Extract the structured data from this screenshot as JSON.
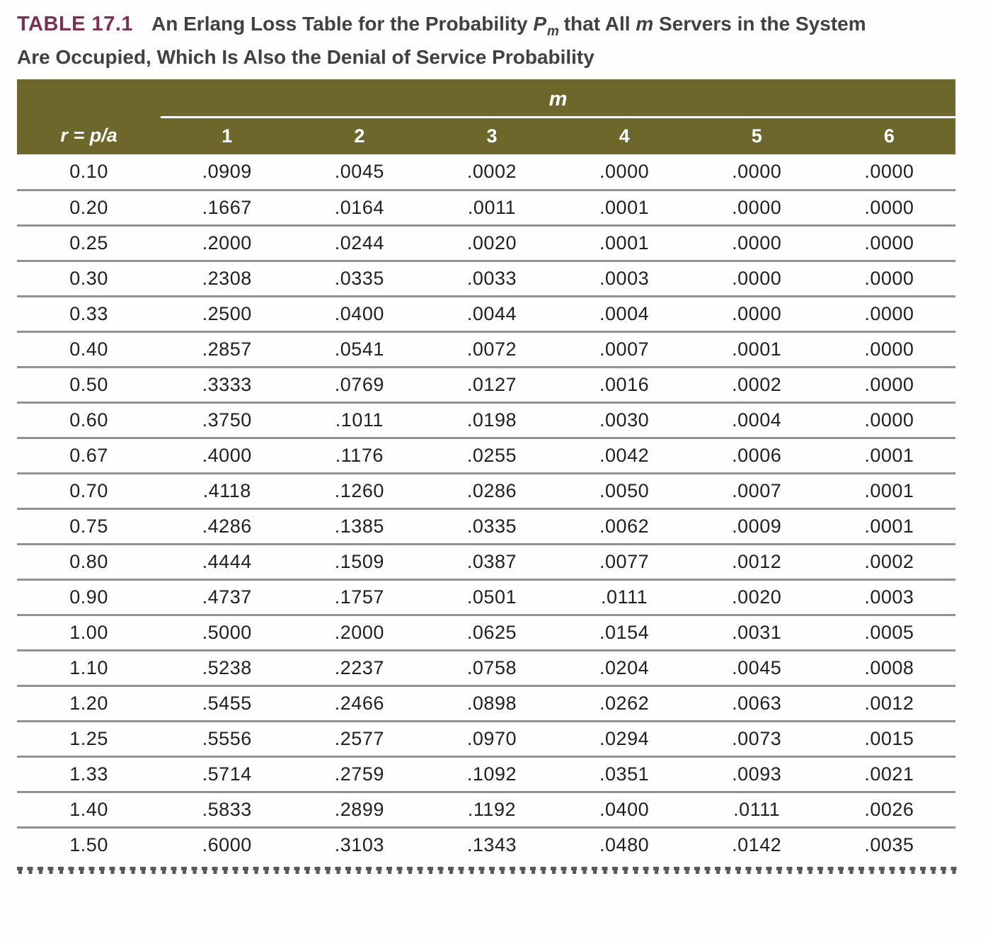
{
  "colors": {
    "header_background": "#6D672B",
    "table_tag": "#7D3054",
    "caption_text": "#414042",
    "data_text": "#231F20",
    "row_divider": "#8F9193",
    "header_text": "#FFFFFF",
    "perforation": "#58595B"
  },
  "caption": {
    "tag": "TABLE 17.1",
    "line1_pre": "An Erlang Loss Table for the Probability ",
    "p_symbol": "P",
    "p_subscript": "m",
    "line1_mid": " that All ",
    "m_italic": "m",
    "line1_post": " Servers in the System",
    "line2": "Are Occupied, Which Is Also the Denial of Service Probability"
  },
  "table": {
    "group_header": "m",
    "row_header_label": "r = p/a",
    "column_headers": [
      "1",
      "2",
      "3",
      "4",
      "5",
      "6"
    ],
    "rows": [
      {
        "r": "0.10",
        "values": [
          ".0909",
          ".0045",
          ".0002",
          ".0000",
          ".0000",
          ".0000"
        ]
      },
      {
        "r": "0.20",
        "values": [
          ".1667",
          ".0164",
          ".0011",
          ".0001",
          ".0000",
          ".0000"
        ]
      },
      {
        "r": "0.25",
        "values": [
          ".2000",
          ".0244",
          ".0020",
          ".0001",
          ".0000",
          ".0000"
        ]
      },
      {
        "r": "0.30",
        "values": [
          ".2308",
          ".0335",
          ".0033",
          ".0003",
          ".0000",
          ".0000"
        ]
      },
      {
        "r": "0.33",
        "values": [
          ".2500",
          ".0400",
          ".0044",
          ".0004",
          ".0000",
          ".0000"
        ]
      },
      {
        "r": "0.40",
        "values": [
          ".2857",
          ".0541",
          ".0072",
          ".0007",
          ".0001",
          ".0000"
        ]
      },
      {
        "r": "0.50",
        "values": [
          ".3333",
          ".0769",
          ".0127",
          ".0016",
          ".0002",
          ".0000"
        ]
      },
      {
        "r": "0.60",
        "values": [
          ".3750",
          ".1011",
          ".0198",
          ".0030",
          ".0004",
          ".0000"
        ]
      },
      {
        "r": "0.67",
        "values": [
          ".4000",
          ".1176",
          ".0255",
          ".0042",
          ".0006",
          ".0001"
        ]
      },
      {
        "r": "0.70",
        "values": [
          ".4118",
          ".1260",
          ".0286",
          ".0050",
          ".0007",
          ".0001"
        ]
      },
      {
        "r": "0.75",
        "values": [
          ".4286",
          ".1385",
          ".0335",
          ".0062",
          ".0009",
          ".0001"
        ]
      },
      {
        "r": "0.80",
        "values": [
          ".4444",
          ".1509",
          ".0387",
          ".0077",
          ".0012",
          ".0002"
        ]
      },
      {
        "r": "0.90",
        "values": [
          ".4737",
          ".1757",
          ".0501",
          ".0111",
          ".0020",
          ".0003"
        ]
      },
      {
        "r": "1.00",
        "values": [
          ".5000",
          ".2000",
          ".0625",
          ".0154",
          ".0031",
          ".0005"
        ]
      },
      {
        "r": "1.10",
        "values": [
          ".5238",
          ".2237",
          ".0758",
          ".0204",
          ".0045",
          ".0008"
        ]
      },
      {
        "r": "1.20",
        "values": [
          ".5455",
          ".2466",
          ".0898",
          ".0262",
          ".0063",
          ".0012"
        ]
      },
      {
        "r": "1.25",
        "values": [
          ".5556",
          ".2577",
          ".0970",
          ".0294",
          ".0073",
          ".0015"
        ]
      },
      {
        "r": "1.33",
        "values": [
          ".5714",
          ".2759",
          ".1092",
          ".0351",
          ".0093",
          ".0021"
        ]
      },
      {
        "r": "1.40",
        "values": [
          ".5833",
          ".2899",
          ".1192",
          ".0400",
          ".0111",
          ".0026"
        ]
      },
      {
        "r": "1.50",
        "values": [
          ".6000",
          ".3103",
          ".1343",
          ".0480",
          ".0142",
          ".0035"
        ]
      }
    ]
  }
}
